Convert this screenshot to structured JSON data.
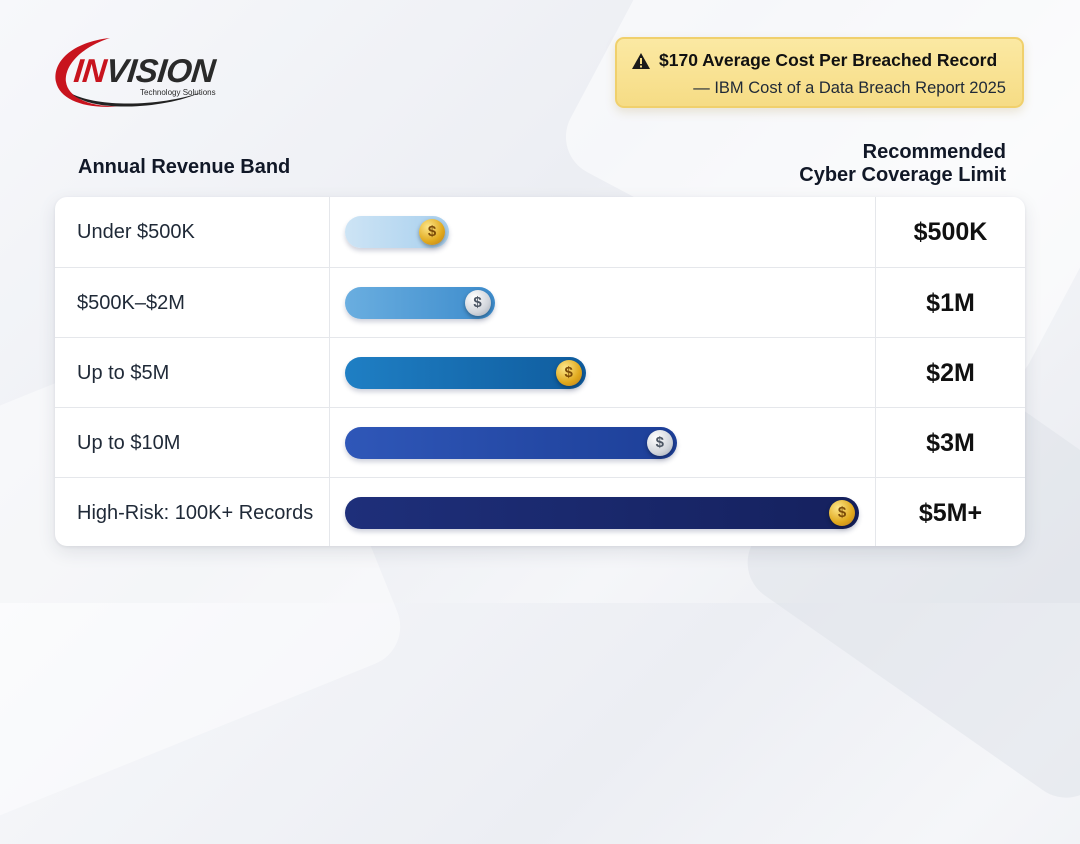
{
  "logo": {
    "word_first": "IN",
    "word_rest": "VISION",
    "tagline": "Technology Solutions"
  },
  "callout": {
    "icon": "warning-icon",
    "headline": "$170 Average Cost Per Breached Record",
    "source": "— IBM Cost of a Data Breach Report 2025"
  },
  "chart_data": {
    "type": "bar",
    "orientation": "horizontal",
    "column_left_header": "Annual Revenue Band",
    "column_right_header_line1": "Recommended",
    "column_right_header_line2": "Cyber Coverage Limit",
    "rows": [
      {
        "band": "Under $500K",
        "limit_label": "$500K",
        "value": 0.5,
        "coin": "gold",
        "bar_color": [
          "#cde4f5",
          "#a9d0ee"
        ]
      },
      {
        "band": "$500K–$2M",
        "limit_label": "$1M",
        "value": 1,
        "coin": "silver",
        "bar_color": [
          "#6aaee0",
          "#3d8ccc"
        ]
      },
      {
        "band": "Up to $5M",
        "limit_label": "$2M",
        "value": 2,
        "coin": "gold",
        "bar_color": [
          "#1f7fc4",
          "#0f5c9e"
        ]
      },
      {
        "band": "Up to $10M",
        "limit_label": "$3M",
        "value": 3,
        "coin": "silver",
        "bar_color": [
          "#2f57b8",
          "#1d3f98"
        ]
      },
      {
        "band": "High-Risk: 100K+ Records",
        "limit_label": "$5M+",
        "value": 5,
        "coin": "gold",
        "bar_color": [
          "#1e2f7a",
          "#15215e"
        ]
      }
    ],
    "units": "$M",
    "coin_symbol": "$"
  }
}
